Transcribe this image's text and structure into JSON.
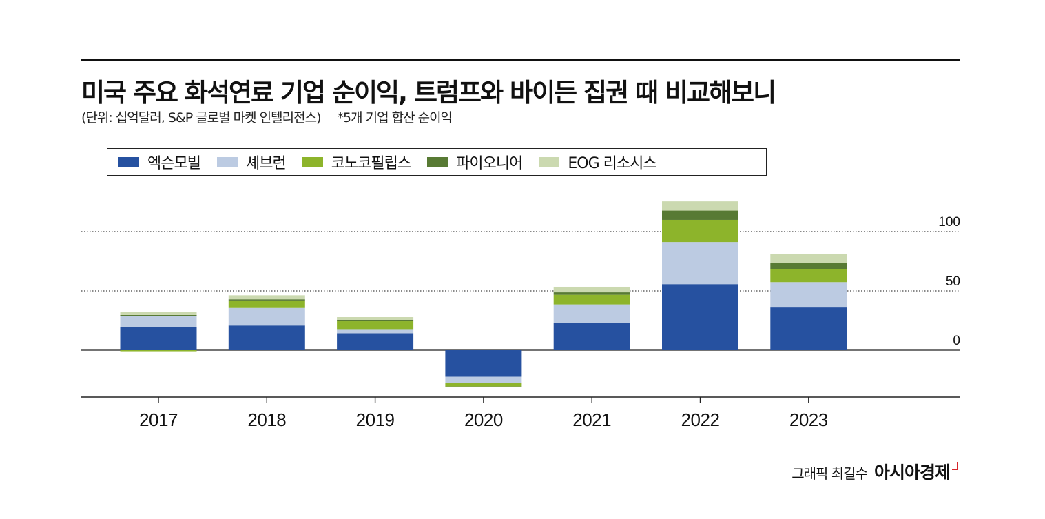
{
  "title": "미국 주요 화석연료 기업 순이익, 트럼프와 바이든 집권 때 비교해보니",
  "subtitle": "(단위: 십억달러, S&P 글로벌 마켓 인텔리전스)",
  "note": "*5개 기업 합산 순이익",
  "footer": {
    "credit": "그래픽 최길수",
    "brand": "아시아경제"
  },
  "colors": {
    "exxon": "#2651a0",
    "chevron": "#bccbe2",
    "conoco": "#8db42b",
    "pioneer": "#587a34",
    "eog": "#cbd9b0"
  },
  "chart_data": {
    "type": "bar",
    "stacked": true,
    "categories": [
      "2017",
      "2018",
      "2019",
      "2020",
      "2021",
      "2022",
      "2023"
    ],
    "series": [
      {
        "name": "엑슨모빌",
        "color": "#2651a0",
        "values": [
          19.7,
          20.8,
          14.3,
          -22.4,
          23.0,
          55.7,
          36.0
        ]
      },
      {
        "name": "셰브런",
        "color": "#bccbe2",
        "values": [
          9.2,
          14.8,
          2.9,
          -5.5,
          15.6,
          35.5,
          21.4
        ]
      },
      {
        "name": "코노코필립스",
        "color": "#8db42b",
        "values": [
          -0.9,
          6.3,
          7.2,
          -2.7,
          8.1,
          18.7,
          11.0
        ]
      },
      {
        "name": "파이오니어",
        "color": "#587a34",
        "values": [
          0.8,
          1.0,
          0.8,
          -0.2,
          2.1,
          7.8,
          4.9
        ]
      },
      {
        "name": "EOG 리소시스",
        "color": "#cbd9b0",
        "values": [
          2.6,
          3.4,
          2.7,
          -0.6,
          4.7,
          7.8,
          7.6
        ]
      }
    ],
    "y_ticks": [
      "100",
      "50",
      "0"
    ],
    "ylim": [
      -39,
      127
    ],
    "grid": "dotted at 50 and 100",
    "legend_placement": "top"
  }
}
